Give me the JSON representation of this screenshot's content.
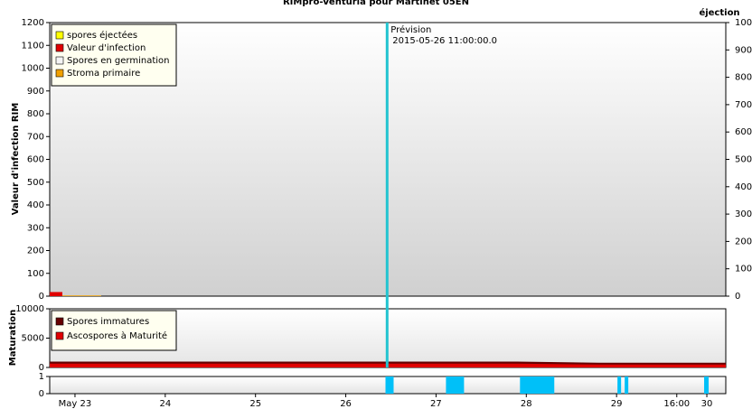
{
  "chart_data": [
    {
      "type": "area",
      "title": "RIMpro-Venturia pour  Martinet 05EN",
      "y_label": "Valeur d'infection RIM",
      "y2_label": "éjection",
      "ylim": [
        0,
        1200
      ],
      "yticks": [
        0,
        100,
        200,
        300,
        400,
        500,
        600,
        700,
        800,
        900,
        1000,
        1100,
        1200
      ],
      "y2lim": [
        0,
        1000
      ],
      "y2ticks": [
        0,
        100,
        200,
        300,
        400,
        500,
        600,
        700,
        800,
        900,
        1000
      ],
      "xlim": [
        22.72,
        30.21
      ],
      "forecast_x": 26.458,
      "annotation": "Prévision",
      "annotation_date": "2015-05-26 11:00:00.0",
      "forecast_color": "#22c4d0",
      "series": [
        {
          "name": "spores éjectées",
          "color": "#ffff00",
          "x": [],
          "values": [],
          "axis": "y2"
        },
        {
          "name": "Valeur d'infection",
          "color": "#e00000",
          "x": [
            22.72,
            22.86
          ],
          "values": [
            18,
            18
          ]
        },
        {
          "name": "Spores en germination",
          "color": "#f4f4f4",
          "x": [],
          "values": []
        },
        {
          "name": "Stroma primaire",
          "color": "#f0a000",
          "x": [
            22.86,
            23.29
          ],
          "values": [
            3,
            3
          ]
        }
      ]
    },
    {
      "type": "area",
      "y_label": "Maturation",
      "ylim": [
        0,
        10000
      ],
      "yticks": [
        0,
        5000,
        10000
      ],
      "xlim": [
        22.72,
        30.21
      ],
      "series": [
        {
          "name": "Spores immatures",
          "color": "#660000",
          "x": [
            22.72,
            27.9,
            28.8,
            30.21
          ],
          "values": [
            1000,
            1000,
            800,
            800
          ]
        },
        {
          "name": "Ascospores à Maturité",
          "color": "#e00000",
          "x": [
            22.72,
            27.9,
            28.8,
            30.21
          ],
          "values": [
            650,
            650,
            500,
            500
          ]
        }
      ]
    },
    {
      "type": "bar",
      "ylim": [
        0,
        1
      ],
      "yticks": [
        0,
        1
      ],
      "xlim": [
        22.72,
        30.21
      ],
      "color": "#00c0f8",
      "starts": [
        26.44,
        27.11,
        27.93,
        29.01,
        29.09,
        29.97
      ],
      "ends": [
        26.53,
        27.31,
        28.31,
        29.05,
        29.13,
        30.02
      ],
      "values": [
        1,
        1,
        1,
        1,
        1,
        1
      ],
      "xticks": [
        {
          "value": 23,
          "label": "May 23"
        },
        24,
        25,
        26,
        27,
        28,
        29,
        {
          "value": 29.667,
          "label": "16:00"
        },
        30
      ]
    }
  ]
}
